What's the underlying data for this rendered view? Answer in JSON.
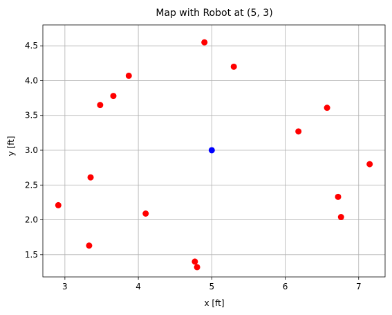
{
  "chart_data": {
    "type": "scatter",
    "title": "Map with Robot at (5, 3)",
    "x_label": "x [ft]",
    "y_label": "y [ft]",
    "series": [
      {
        "color": "#ff0000",
        "x": [
          4.9,
          5.3,
          3.87,
          3.66,
          3.48,
          6.57,
          6.18,
          7.15,
          3.35,
          2.91,
          6.72,
          4.1,
          6.76,
          3.33,
          4.77,
          4.8
        ],
        "values": [
          4.55,
          4.2,
          4.07,
          3.78,
          3.65,
          3.61,
          3.27,
          2.8,
          2.61,
          2.21,
          2.33,
          2.09,
          2.04,
          1.63,
          1.4,
          1.32
        ]
      },
      {
        "color": "#0000ff",
        "x": [
          5
        ],
        "values": [
          3
        ]
      }
    ],
    "xlim": [
      2.7,
      7.36
    ],
    "xticks": [
      3,
      4,
      5,
      6,
      7
    ],
    "ylim": [
      1.18,
      4.8
    ],
    "yticks": [
      1.5,
      {
        "value": 2,
        "label": "2.0"
      },
      2.5,
      {
        "value": 3,
        "label": "3.0"
      },
      3.5,
      {
        "value": 4,
        "label": "4.0"
      },
      4.5
    ],
    "grid": true
  }
}
